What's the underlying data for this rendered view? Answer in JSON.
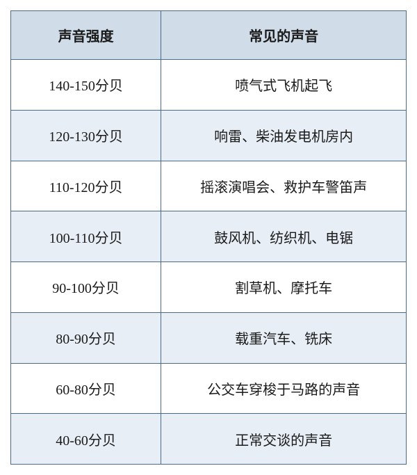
{
  "table": {
    "header_bg": "#d0dce8",
    "row_odd_bg": "#ffffff",
    "row_even_bg": "#e8eef5",
    "border_color": "#4a6a8a",
    "font_size": 20,
    "font_weight_header": "bold",
    "col1_width_pct": 38,
    "col2_width_pct": 62,
    "columns": [
      {
        "label": "声音强度"
      },
      {
        "label": "常见的声音"
      }
    ],
    "rows": [
      {
        "intensity": "140-150分贝",
        "example": "喷气式飞机起飞"
      },
      {
        "intensity": "120-130分贝",
        "example": "响雷、柴油发电机房内"
      },
      {
        "intensity": "110-120分贝",
        "example": "摇滚演唱会、救护车警笛声"
      },
      {
        "intensity": "100-110分贝",
        "example": "鼓风机、纺织机、电锯"
      },
      {
        "intensity": "90-100分贝",
        "example": "割草机、摩托车"
      },
      {
        "intensity": "80-90分贝",
        "example": "载重汽车、铣床"
      },
      {
        "intensity": "60-80分贝",
        "example": "公交车穿梭于马路的声音"
      },
      {
        "intensity": "40-60分贝",
        "example": "正常交谈的声音"
      }
    ]
  }
}
